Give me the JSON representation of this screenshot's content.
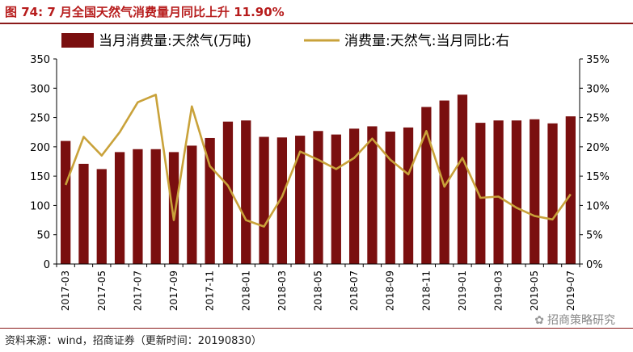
{
  "title": "图 74:  7 月全国天然气消费量月同比上升 11.90%",
  "source": "资料来源：wind，招商证券（更新时间：20190830）",
  "watermark": "招商策略研究",
  "colors": {
    "bar": "#7a0f0f",
    "line": "#c9a23a",
    "title": "#b71c1c"
  },
  "chart_data": {
    "type": "bar+line",
    "categories": [
      "2017-03",
      "2017-04",
      "2017-05",
      "2017-06",
      "2017-07",
      "2017-08",
      "2017-09",
      "2017-10",
      "2017-11",
      "2017-12",
      "2018-01",
      "2018-02",
      "2018-03",
      "2018-04",
      "2018-05",
      "2018-06",
      "2018-07",
      "2018-08",
      "2018-09",
      "2018-10",
      "2018-11",
      "2018-12",
      "2019-01",
      "2019-02",
      "2019-03",
      "2019-04",
      "2019-05",
      "2019-06",
      "2019-07"
    ],
    "xtick_labels": [
      "2017-03",
      "2017-05",
      "2017-07",
      "2017-09",
      "2017-11",
      "2018-01",
      "2018-03",
      "2018-05",
      "2018-07",
      "2018-09",
      "2018-11",
      "2019-01",
      "2019-03",
      "2019-05",
      "2019-07"
    ],
    "series": [
      {
        "name": "当月消费量:天然气(万吨)",
        "type": "bar",
        "axis": "left",
        "values": [
          210,
          171,
          162,
          191,
          196,
          196,
          191,
          202,
          215,
          243,
          245,
          217,
          216,
          219,
          227,
          221,
          231,
          235,
          226,
          233,
          268,
          279,
          289,
          241,
          245,
          245,
          247,
          240,
          252
        ]
      },
      {
        "name": "消费量:天然气:当月同比:右",
        "type": "line",
        "axis": "right",
        "values": [
          13.5,
          21.7,
          18.5,
          22.5,
          27.6,
          28.9,
          7.5,
          26.9,
          16.7,
          13.4,
          7.5,
          6.4,
          11.5,
          19.2,
          17.8,
          16.2,
          18.1,
          21.4,
          17.8,
          15.3,
          22.7,
          13.2,
          18.1,
          11.3,
          11.5,
          9.6,
          8.2,
          7.6,
          11.9
        ]
      }
    ],
    "y_left": {
      "ylim": [
        0,
        350
      ],
      "ticks": [
        "0",
        "50",
        "100",
        "150",
        "200",
        "250",
        "300",
        "350"
      ]
    },
    "y_right": {
      "ylim": [
        0,
        35
      ],
      "ticks": [
        "0%",
        "5%",
        "10%",
        "15%",
        "20%",
        "25%",
        "30%",
        "35%"
      ]
    },
    "legend_position": "top",
    "grid": false
  }
}
